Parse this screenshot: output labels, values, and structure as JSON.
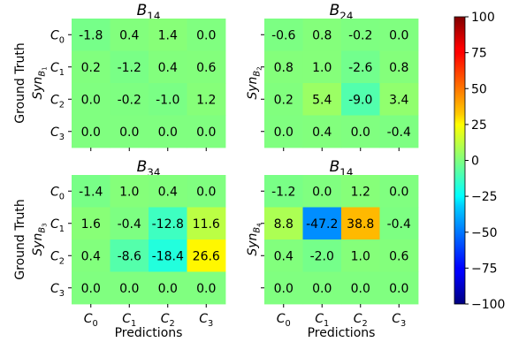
{
  "chart_data": {
    "type": "heatmap",
    "shared": {
      "x_tick_labels": [
        "C0",
        "C1",
        "C2",
        "C3"
      ],
      "y_tick_labels": [
        "C0",
        "C1",
        "C2",
        "C3"
      ],
      "xlabel": "Predictions",
      "ylabel_top": "Ground Truth",
      "colorbar": {
        "range": [
          -100,
          100
        ],
        "ticks": [
          100,
          75,
          50,
          25,
          0,
          -25,
          -50,
          -75,
          -100
        ],
        "tick_labels": [
          "100",
          "75",
          "50",
          "25",
          "0",
          "−25",
          "−50",
          "−75",
          "−100"
        ],
        "colormap": "jet"
      }
    },
    "panels": [
      {
        "id": "p1",
        "title": "B14",
        "row_label": "SynB1",
        "values": [
          [
            -1.8,
            0.4,
            1.4,
            0.0
          ],
          [
            0.2,
            -1.2,
            0.4,
            0.6
          ],
          [
            0.0,
            -0.2,
            -1.0,
            1.2
          ],
          [
            0.0,
            0.0,
            0.0,
            0.0
          ]
        ],
        "labels": [
          [
            "-1.8",
            "0.4",
            "1.4",
            "0.0"
          ],
          [
            "0.2",
            "-1.2",
            "0.4",
            "0.6"
          ],
          [
            "0.0",
            "-0.2",
            "-1.0",
            "1.2"
          ],
          [
            "0.0",
            "0.0",
            "0.0",
            "0.0"
          ]
        ]
      },
      {
        "id": "p2",
        "title": "B24",
        "row_label": "SynB2",
        "values": [
          [
            -0.6,
            0.8,
            -0.2,
            0.0
          ],
          [
            0.8,
            1.0,
            -2.6,
            0.8
          ],
          [
            0.2,
            5.4,
            -9.0,
            3.4
          ],
          [
            0.0,
            0.4,
            0.0,
            -0.4
          ]
        ],
        "labels": [
          [
            "-0.6",
            "0.8",
            "-0.2",
            "0.0"
          ],
          [
            "0.8",
            "1.0",
            "-2.6",
            "0.8"
          ],
          [
            "0.2",
            "5.4",
            "-9.0",
            "3.4"
          ],
          [
            "0.0",
            "0.4",
            "0.0",
            "-0.4"
          ]
        ]
      },
      {
        "id": "p3",
        "title": "B34",
        "row_label": "SynB3",
        "values": [
          [
            -1.4,
            1.0,
            0.4,
            0.0
          ],
          [
            1.6,
            -0.4,
            -12.8,
            11.6
          ],
          [
            0.4,
            -8.6,
            -18.4,
            26.6
          ],
          [
            0.0,
            0.0,
            0.0,
            0.0
          ]
        ],
        "labels": [
          [
            "-1.4",
            "1.0",
            "0.4",
            "0.0"
          ],
          [
            "1.6",
            "-0.4",
            "-12.8",
            "11.6"
          ],
          [
            "0.4",
            "-8.6",
            "-18.4",
            "26.6"
          ],
          [
            "0.0",
            "0.0",
            "0.0",
            "0.0"
          ]
        ]
      },
      {
        "id": "p4",
        "title": "B14",
        "row_label": "SynB4",
        "values": [
          [
            -1.2,
            0.0,
            1.2,
            0.0
          ],
          [
            8.8,
            -47.2,
            38.8,
            -0.4
          ],
          [
            0.4,
            -2.0,
            1.0,
            0.6
          ],
          [
            0.0,
            0.0,
            0.0,
            0.0
          ]
        ],
        "labels": [
          [
            "-1.2",
            "0.0",
            "1.2",
            "0.0"
          ],
          [
            "8.8",
            "-47.2",
            "38.8",
            "-0.4"
          ],
          [
            "0.4",
            "-2.0",
            "1.0",
            "0.6"
          ],
          [
            "0.0",
            "0.0",
            "0.0",
            "0.0"
          ]
        ]
      }
    ]
  }
}
